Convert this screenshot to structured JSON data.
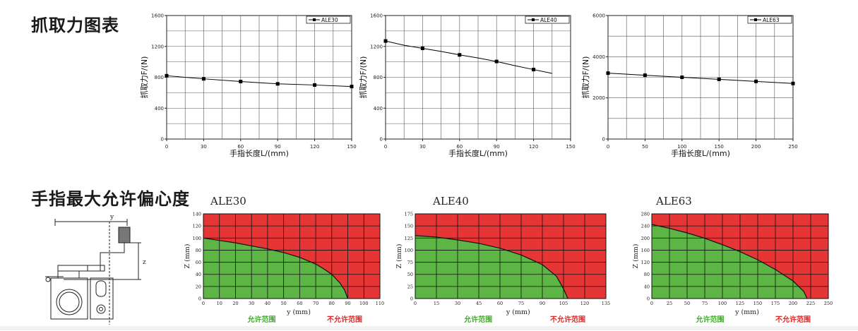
{
  "titles": {
    "force": "抓取力图表",
    "eccentricity": "手指最大允许偏心度"
  },
  "colors": {
    "grid": "#555555",
    "line": "#000000",
    "allowed": "#5cb545",
    "not_allowed": "#e53535",
    "allowed_text": "#3fae2a",
    "not_allowed_text": "#e02828"
  },
  "chart_data": [
    {
      "id": "force-ale30",
      "type": "line",
      "xlabel": "手指长度L/(mm)",
      "ylabel": "抓取力F/(N)",
      "xlim": [
        0,
        150
      ],
      "ylim": [
        0,
        1600
      ],
      "xticks": [
        "0",
        "30",
        "60",
        "90",
        "120",
        "150"
      ],
      "yticks": [
        "0",
        "400",
        "800",
        "1200",
        "1600"
      ],
      "grid": true,
      "legend_position": "top-right",
      "series": [
        {
          "name": "ALE30",
          "x": [
            0,
            30,
            60,
            90,
            120,
            150
          ],
          "y": [
            820,
            780,
            745,
            715,
            700,
            680
          ]
        }
      ]
    },
    {
      "id": "force-ale40",
      "type": "line",
      "xlabel": "手指长度L/(mm)",
      "ylabel": "抓取力F/(N)",
      "xlim": [
        0,
        150
      ],
      "ylim": [
        0,
        1600
      ],
      "xticks": [
        "0",
        "30",
        "60",
        "90",
        "120",
        "150"
      ],
      "yticks": [
        "0",
        "400",
        "800",
        "1200",
        "1600"
      ],
      "grid": true,
      "legend_position": "top-right",
      "series": [
        {
          "name": "ALE40",
          "x": [
            0,
            15,
            30,
            45,
            60,
            75,
            90,
            105,
            120,
            135
          ],
          "y": [
            1270,
            1215,
            1175,
            1135,
            1090,
            1050,
            1005,
            950,
            900,
            850
          ],
          "markers": [
            0,
            2,
            4,
            6,
            8
          ]
        }
      ]
    },
    {
      "id": "force-ale63",
      "type": "line",
      "xlabel": "手指长度L/(mm)",
      "ylabel": "抓取力F/(N)",
      "xlim": [
        0,
        250
      ],
      "ylim": [
        0,
        6000
      ],
      "xticks": [
        "0",
        "50",
        "100",
        "150",
        "200",
        "250"
      ],
      "yticks": [
        "0",
        "2000",
        "4000",
        "6000"
      ],
      "grid": true,
      "legend_position": "top-right",
      "series": [
        {
          "name": "ALE63",
          "x": [
            0,
            50,
            100,
            150,
            200,
            250
          ],
          "y": [
            3200,
            3100,
            3000,
            2900,
            2800,
            2700
          ]
        }
      ]
    },
    {
      "id": "ecc-ale30",
      "type": "area",
      "title": "ALE30",
      "xlabel": "y (mm)",
      "ylabel": "Z (mm)",
      "xlim": [
        0,
        110
      ],
      "ylim": [
        0,
        140
      ],
      "xticks": [
        "0",
        "10",
        "20",
        "30",
        "40",
        "50",
        "60",
        "70",
        "80",
        "90",
        "100",
        "110"
      ],
      "yticks": [
        "0",
        "20",
        "40",
        "60",
        "80",
        "100",
        "120",
        "140"
      ],
      "grid": true,
      "allowed_label": "允许范围",
      "not_allowed_label": "不允许范围",
      "boundary": {
        "y": [
          0,
          10,
          20,
          30,
          40,
          50,
          60,
          70,
          75,
          80,
          85,
          88,
          90
        ],
        "z": [
          100,
          96,
          92,
          87,
          82,
          76,
          68,
          57,
          49,
          40,
          26,
          14,
          0
        ]
      }
    },
    {
      "id": "ecc-ale40",
      "type": "area",
      "title": "ALE40",
      "xlabel": "y (mm)",
      "ylabel": "Z (mm)",
      "xlim": [
        0,
        135
      ],
      "ylim": [
        0,
        175
      ],
      "xticks": [
        "0",
        "15",
        "30",
        "45",
        "60",
        "75",
        "90",
        "105",
        "120",
        "135"
      ],
      "yticks": [
        "0",
        "25",
        "50",
        "75",
        "100",
        "125",
        "150",
        "175"
      ],
      "grid": true,
      "allowed_label": "允许范围",
      "not_allowed_label": "不允许范围",
      "boundary": {
        "y": [
          0,
          15,
          30,
          45,
          60,
          75,
          90,
          100,
          105,
          108
        ],
        "z": [
          130,
          127,
          121,
          114,
          104,
          90,
          70,
          46,
          20,
          0
        ]
      }
    },
    {
      "id": "ecc-ale63",
      "type": "area",
      "title": "ALE63",
      "xlabel": "y (mm)",
      "ylabel": "Z (mm)",
      "xlim": [
        0,
        250
      ],
      "ylim": [
        0,
        280
      ],
      "xticks": [
        "0",
        "25",
        "50",
        "75",
        "100",
        "125",
        "150",
        "175",
        "200",
        "225",
        "250"
      ],
      "yticks": [
        "0",
        "40",
        "80",
        "120",
        "160",
        "200",
        "240",
        "280"
      ],
      "grid": true,
      "allowed_label": "允许范围",
      "not_allowed_label": "不允许范围",
      "boundary": {
        "y": [
          0,
          25,
          50,
          75,
          100,
          125,
          150,
          175,
          200,
          215,
          220
        ],
        "z": [
          245,
          232,
          217,
          199,
          178,
          155,
          128,
          96,
          58,
          24,
          0
        ]
      }
    }
  ],
  "diagram": {
    "label_y": "y",
    "label_z": "z"
  }
}
